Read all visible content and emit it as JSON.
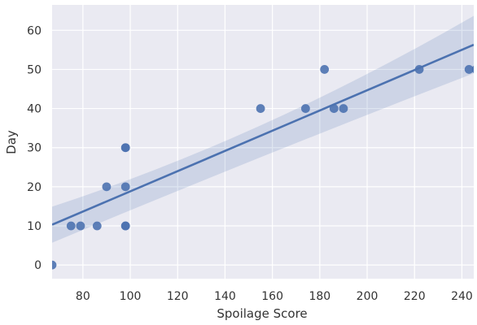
{
  "chart_data": {
    "type": "scatter",
    "title": "",
    "xlabel": "Spoilage Score",
    "ylabel": "Day",
    "xlim": [
      67,
      245
    ],
    "ylim": [
      -3.5,
      66.5
    ],
    "xticks": [
      80,
      100,
      120,
      140,
      160,
      180,
      200,
      220,
      240
    ],
    "yticks": [
      0,
      10,
      20,
      30,
      40,
      50,
      60
    ],
    "grid": true,
    "legend": "none",
    "points": [
      {
        "x": 67,
        "y": 0
      },
      {
        "x": 75,
        "y": 10
      },
      {
        "x": 79,
        "y": 10
      },
      {
        "x": 86,
        "y": 10
      },
      {
        "x": 90,
        "y": 20
      },
      {
        "x": 98,
        "y": 10
      },
      {
        "x": 98,
        "y": 10
      },
      {
        "x": 98,
        "y": 20
      },
      {
        "x": 98,
        "y": 30
      },
      {
        "x": 98,
        "y": 30
      },
      {
        "x": 155,
        "y": 40
      },
      {
        "x": 174,
        "y": 40
      },
      {
        "x": 182,
        "y": 50
      },
      {
        "x": 186,
        "y": 40
      },
      {
        "x": 190,
        "y": 40
      },
      {
        "x": 222,
        "y": 50
      },
      {
        "x": 243,
        "y": 50
      },
      {
        "x": 246,
        "y": 50
      }
    ],
    "regression": {
      "x_start": 67,
      "y_start": 10.3,
      "x_end": 245,
      "y_end": 56.3,
      "band_start": [
        5.7,
        14.9
      ],
      "band_mid": [
        29.0,
        31.8
      ],
      "band_end": [
        49.0,
        63.7
      ]
    },
    "colors": {
      "plot_bg": "#eaeaf2",
      "grid": "#ffffff",
      "point": "#4c72b0",
      "line": "#4c72b0",
      "band": "#4c72b0"
    }
  }
}
